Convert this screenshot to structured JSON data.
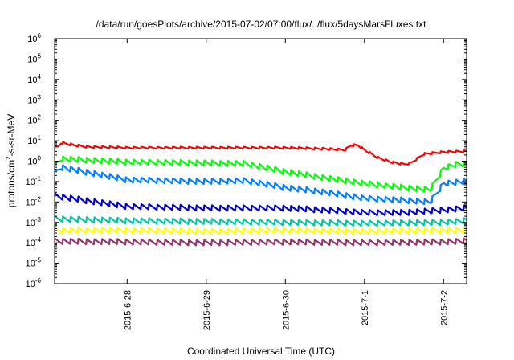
{
  "chart_data": {
    "type": "line",
    "title": "/data/run/goesPlots/archive/2015-07-02/07:00/flux/../flux/5daysMarsFluxes.txt",
    "xlabel": "Coordinated Universal Time (UTC)",
    "ylabel": {
      "prefix": "protons/cm",
      "superscript": "2",
      "suffix": "-s-sr-MeV"
    },
    "yscale": "log",
    "ylim": [
      1e-06,
      1000000.0
    ],
    "xlim": [
      "2015-06-27 02:00",
      "2015-07-02 07:00"
    ],
    "grid": false,
    "legend": "none",
    "x_ticks": [
      {
        "date": "2015-06-28 00:00",
        "label": "2015-6-28"
      },
      {
        "date": "2015-06-29 00:00",
        "label": "2015-6-29"
      },
      {
        "date": "2015-06-30 00:00",
        "label": "2015-6-30"
      },
      {
        "date": "2015-07-01 00:00",
        "label": "2015-7-1"
      },
      {
        "date": "2015-07-02 00:00",
        "label": "2015-7-2"
      }
    ],
    "y_ticks": [
      {
        "value": 1e-06,
        "base": "10",
        "exp": "-6"
      },
      {
        "value": 1e-05,
        "base": "10",
        "exp": "-5"
      },
      {
        "value": 0.0001,
        "base": "10",
        "exp": "-4"
      },
      {
        "value": 0.001,
        "base": "10",
        "exp": "-3"
      },
      {
        "value": 0.01,
        "base": "10",
        "exp": "-2"
      },
      {
        "value": 0.1,
        "base": "10",
        "exp": "-1"
      },
      {
        "value": 1,
        "base": "10",
        "exp": "0"
      },
      {
        "value": 10,
        "base": "10",
        "exp": "1"
      },
      {
        "value": 100,
        "base": "10",
        "exp": "2"
      },
      {
        "value": 1000,
        "base": "10",
        "exp": "3"
      },
      {
        "value": 10000,
        "base": "10",
        "exp": "4"
      },
      {
        "value": 100000,
        "base": "10",
        "exp": "5"
      },
      {
        "value": 1000000,
        "base": "10",
        "exp": "6"
      }
    ],
    "series": [
      {
        "color": "#ff0000",
        "points": [
          [
            "2015-06-27 02:00",
            5
          ],
          [
            "2015-06-27 03:00",
            5
          ],
          [
            "2015-06-27 04:00",
            8
          ],
          [
            "2015-06-27 08:00",
            6
          ],
          [
            "2015-06-27 12:00",
            5
          ],
          [
            "2015-06-28 00:00",
            4.5
          ],
          [
            "2015-06-29 00:00",
            4.5
          ],
          [
            "2015-06-30 00:00",
            4.5
          ],
          [
            "2015-06-30 12:00",
            4
          ],
          [
            "2015-06-30 18:00",
            3.5
          ],
          [
            "2015-06-30 20:00",
            6
          ],
          [
            "2015-06-30 22:00",
            6
          ],
          [
            "2015-07-01 00:00",
            3.5
          ],
          [
            "2015-07-01 04:00",
            1.5
          ],
          [
            "2015-07-01 08:00",
            0.9
          ],
          [
            "2015-07-01 12:00",
            0.7
          ],
          [
            "2015-07-01 14:00",
            0.8
          ],
          [
            "2015-07-01 18:00",
            2.2
          ],
          [
            "2015-07-02 00:00",
            2.8
          ],
          [
            "2015-07-02 07:00",
            3
          ]
        ]
      },
      {
        "color": "#00ff00",
        "points": [
          [
            "2015-06-27 02:00",
            0.6
          ],
          [
            "2015-06-27 04:00",
            1.3
          ],
          [
            "2015-06-28 00:00",
            0.9
          ],
          [
            "2015-06-29 00:00",
            0.8
          ],
          [
            "2015-06-29 12:00",
            0.75
          ],
          [
            "2015-06-30 00:00",
            0.3
          ],
          [
            "2015-06-30 12:00",
            0.15
          ],
          [
            "2015-07-01 00:00",
            0.08
          ],
          [
            "2015-07-01 12:00",
            0.05
          ],
          [
            "2015-07-01 20:00",
            0.04
          ],
          [
            "2015-07-02 00:00",
            0.45
          ],
          [
            "2015-07-02 04:00",
            0.7
          ],
          [
            "2015-07-02 07:00",
            0.7
          ]
        ]
      },
      {
        "color": "#0080ff",
        "points": [
          [
            "2015-06-27 02:00",
            0.25
          ],
          [
            "2015-06-27 04:00",
            0.5
          ],
          [
            "2015-06-28 00:00",
            0.12
          ],
          [
            "2015-06-29 00:00",
            0.1
          ],
          [
            "2015-06-29 12:00",
            0.11
          ],
          [
            "2015-06-30 00:00",
            0.05
          ],
          [
            "2015-06-30 12:00",
            0.03
          ],
          [
            "2015-07-01 00:00",
            0.015
          ],
          [
            "2015-07-01 12:00",
            0.012
          ],
          [
            "2015-07-01 20:00",
            0.01
          ],
          [
            "2015-07-02 00:00",
            0.08
          ],
          [
            "2015-07-02 07:00",
            0.1
          ]
        ]
      },
      {
        "color": "#0000cc",
        "points": [
          [
            "2015-06-27 02:00",
            0.02
          ],
          [
            "2015-06-28 00:00",
            0.006
          ],
          [
            "2015-06-29 00:00",
            0.005
          ],
          [
            "2015-06-30 00:00",
            0.005
          ],
          [
            "2015-06-30 12:00",
            0.004
          ],
          [
            "2015-07-01 00:00",
            0.003
          ],
          [
            "2015-07-01 12:00",
            0.003
          ],
          [
            "2015-07-02 00:00",
            0.004
          ],
          [
            "2015-07-02 07:00",
            0.005
          ]
        ]
      },
      {
        "color": "#00c8a0",
        "points": [
          [
            "2015-06-27 02:00",
            0.0015
          ],
          [
            "2015-06-28 00:00",
            0.0012
          ],
          [
            "2015-06-29 00:00",
            0.0011
          ],
          [
            "2015-06-30 00:00",
            0.001
          ],
          [
            "2015-07-01 00:00",
            0.0009
          ],
          [
            "2015-07-02 00:00",
            0.001
          ],
          [
            "2015-07-02 07:00",
            0.0012
          ]
        ]
      },
      {
        "color": "#ffff00",
        "points": [
          [
            "2015-06-27 02:00",
            0.0004
          ],
          [
            "2015-06-28 00:00",
            0.0004
          ],
          [
            "2015-06-29 00:00",
            0.00035
          ],
          [
            "2015-06-30 00:00",
            0.0004
          ],
          [
            "2015-07-01 00:00",
            0.00035
          ],
          [
            "2015-07-02 00:00",
            0.0004
          ],
          [
            "2015-07-02 07:00",
            0.0004
          ]
        ]
      },
      {
        "color": "#993366",
        "points": [
          [
            "2015-06-27 02:00",
            0.00012
          ],
          [
            "2015-06-28 00:00",
            0.00011
          ],
          [
            "2015-06-29 00:00",
            0.0001
          ],
          [
            "2015-06-30 00:00",
            0.00011
          ],
          [
            "2015-07-01 00:00",
            0.0001
          ],
          [
            "2015-07-02 00:00",
            0.00011
          ],
          [
            "2015-07-02 07:00",
            0.00012
          ]
        ]
      }
    ]
  }
}
